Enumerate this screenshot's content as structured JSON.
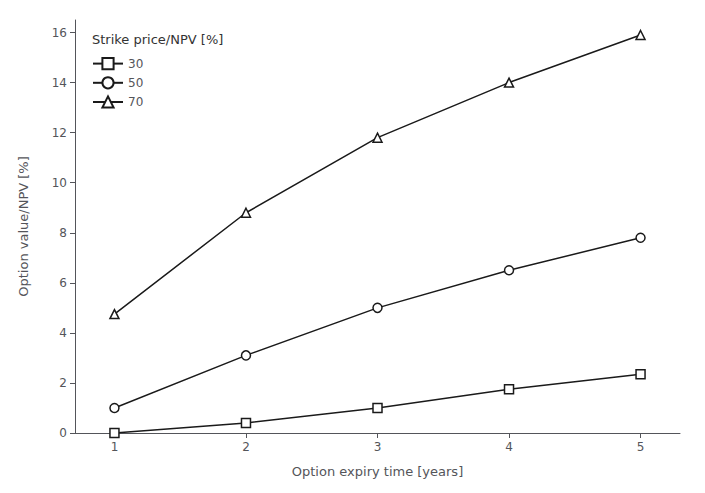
{
  "chart_data": {
    "type": "line",
    "xlabel": "Option expiry time [years]",
    "ylabel": "Option value/NPV [%]",
    "legend_title": "Strike price/NPV [%]",
    "x": [
      1,
      2,
      3,
      4,
      5
    ],
    "series": [
      {
        "name": "30",
        "marker": "square",
        "values": [
          0.0,
          0.4,
          1.0,
          1.75,
          2.35
        ]
      },
      {
        "name": "50",
        "marker": "circle",
        "values": [
          1.0,
          3.1,
          5.0,
          6.5,
          7.8
        ]
      },
      {
        "name": "70",
        "marker": "triangle",
        "values": [
          4.75,
          8.8,
          11.8,
          14.0,
          15.9
        ]
      }
    ],
    "color": "#1a1a1a",
    "xlim": [
      0.7,
      5.3
    ],
    "xticks": [
      1,
      2,
      3,
      4,
      5
    ],
    "ylim": [
      0,
      16.5
    ],
    "yticks": [
      0,
      2,
      4,
      6,
      8,
      10,
      12,
      14,
      16
    ],
    "legend": "upper left",
    "grid": false
  }
}
